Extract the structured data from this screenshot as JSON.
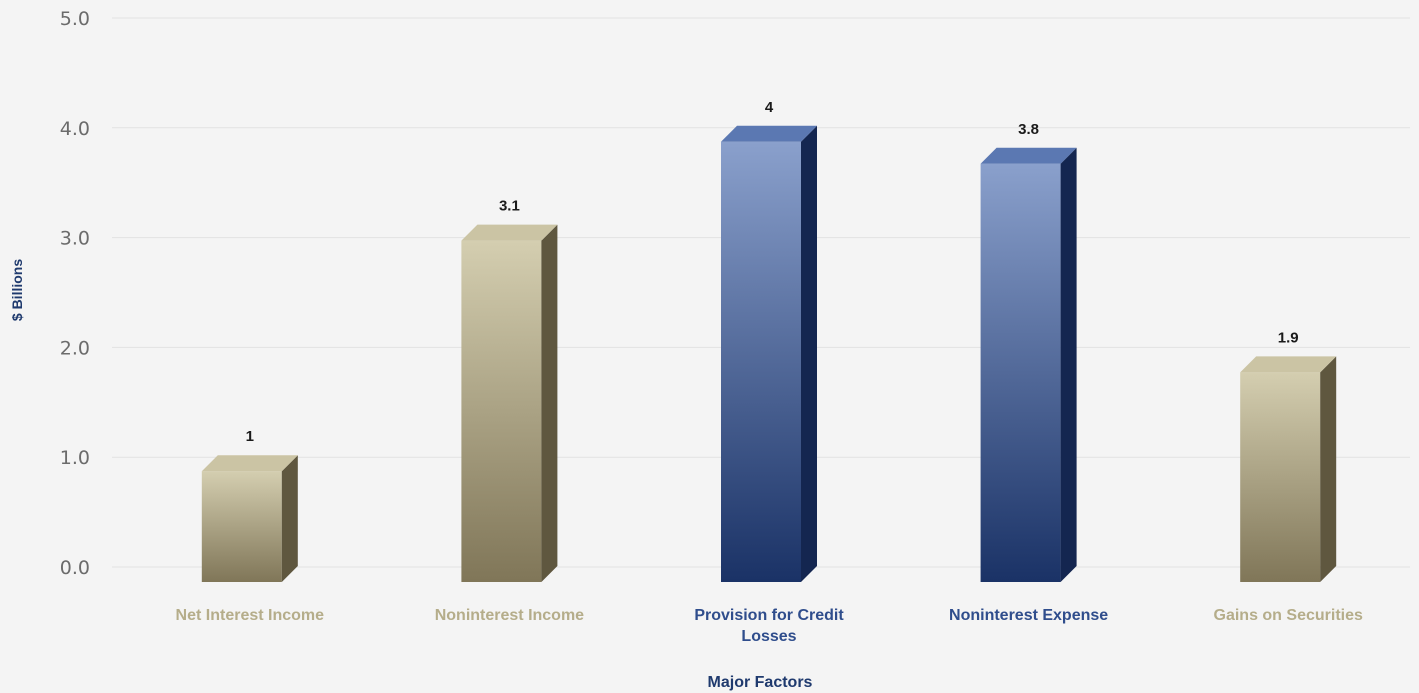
{
  "chart_data": {
    "type": "bar",
    "title": "",
    "xlabel": "Major Factors",
    "ylabel": "$ Billions",
    "ylim": [
      0,
      5
    ],
    "y_ticks": [
      "0.0",
      "1.0",
      "2.0",
      "3.0",
      "4.0",
      "5.0"
    ],
    "grid": true,
    "legend": "none",
    "categories": [
      [
        "Net Interest Income"
      ],
      [
        "Noninterest Income"
      ],
      [
        "Provision for Credit",
        "Losses"
      ],
      [
        "Noninterest Expense"
      ],
      [
        "Gains on Securities"
      ]
    ],
    "values": [
      1,
      3.1,
      4,
      3.8,
      1.9
    ],
    "value_labels": [
      "1",
      "3.1",
      "4",
      "3.8",
      "1.9"
    ],
    "groups": [
      "income",
      "income",
      "expense",
      "expense",
      "income"
    ],
    "colors": {
      "income_front_top": "#d4ceb0",
      "income_front_bottom": "#807658",
      "income_side": "#5f573f",
      "income_top": "#cbc4a4",
      "income_label": "#b5ad8a",
      "expense_front_top": "#8aa0cc",
      "expense_front_bottom": "#1a3266",
      "expense_side": "#142650",
      "expense_top": "#5b78b2",
      "expense_label": "#2f4d8c"
    }
  }
}
